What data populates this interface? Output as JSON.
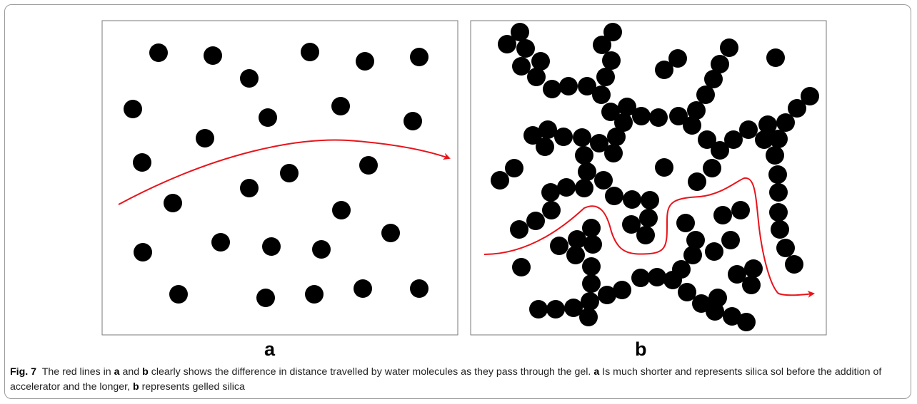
{
  "figure": {
    "panels": [
      {
        "label": "a"
      },
      {
        "label": "b"
      }
    ],
    "colors": {
      "particle": "#000000",
      "path": "#e8141b",
      "border": "#7a7a7a"
    },
    "caption": {
      "fig_label": "Fig. 7",
      "t1": "The red lines in ",
      "a1": "a",
      "t2": " and ",
      "b1": "b",
      "t3": " clearly shows the difference in distance travelled by water molecules as they pass through the gel. ",
      "a2": "a",
      "t4": " Is much shorter and represents silica sol before the addition of accelerator and the longer, ",
      "b2": "b",
      "t5": " represents gelled silica"
    }
  }
}
